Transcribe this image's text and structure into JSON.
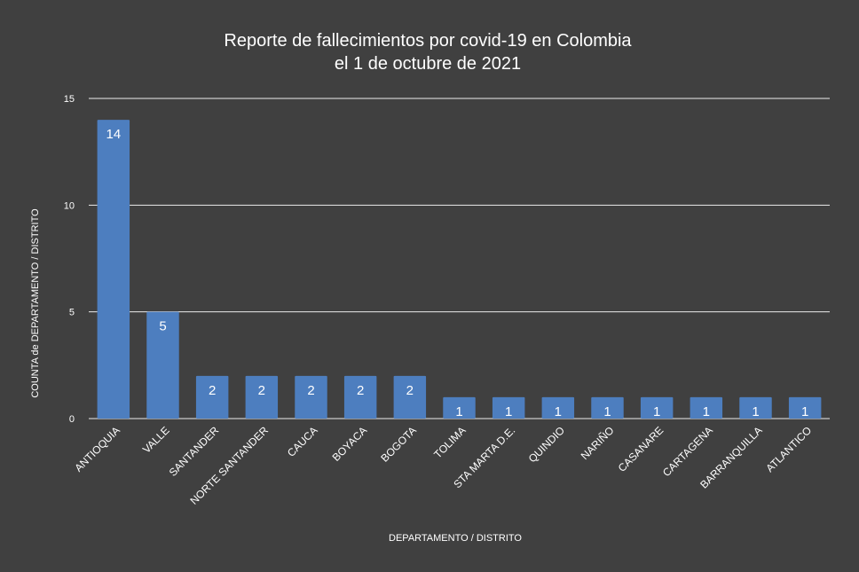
{
  "chart_data": {
    "type": "bar",
    "title": [
      "Reporte de fallecimientos por covid-19 en Colombia",
      "el 1 de octubre de 2021"
    ],
    "xlabel": "DEPARTAMENTO / DISTRITO",
    "ylabel": "COUNTA de DEPARTAMENTO / DISTRITO",
    "ylim": [
      0,
      15
    ],
    "yticks": [
      0,
      5,
      10,
      15
    ],
    "grid": true,
    "categories": [
      "ANTIOQUIA",
      "VALLE",
      "SANTANDER",
      "NORTE SANTANDER",
      "CAUCA",
      "BOYACA",
      "BOGOTA",
      "TOLIMA",
      "STA MARTA D.E.",
      "QUINDIO",
      "NARIÑO",
      "CASANARE",
      "CARTAGENA",
      "BARRANQUILLA",
      "ATLANTICO"
    ],
    "values": [
      14,
      5,
      2,
      2,
      2,
      2,
      2,
      1,
      1,
      1,
      1,
      1,
      1,
      1,
      1
    ],
    "bar_color": "#4d7ebf",
    "background_color": "#404040",
    "text_color": "#ffffff"
  }
}
